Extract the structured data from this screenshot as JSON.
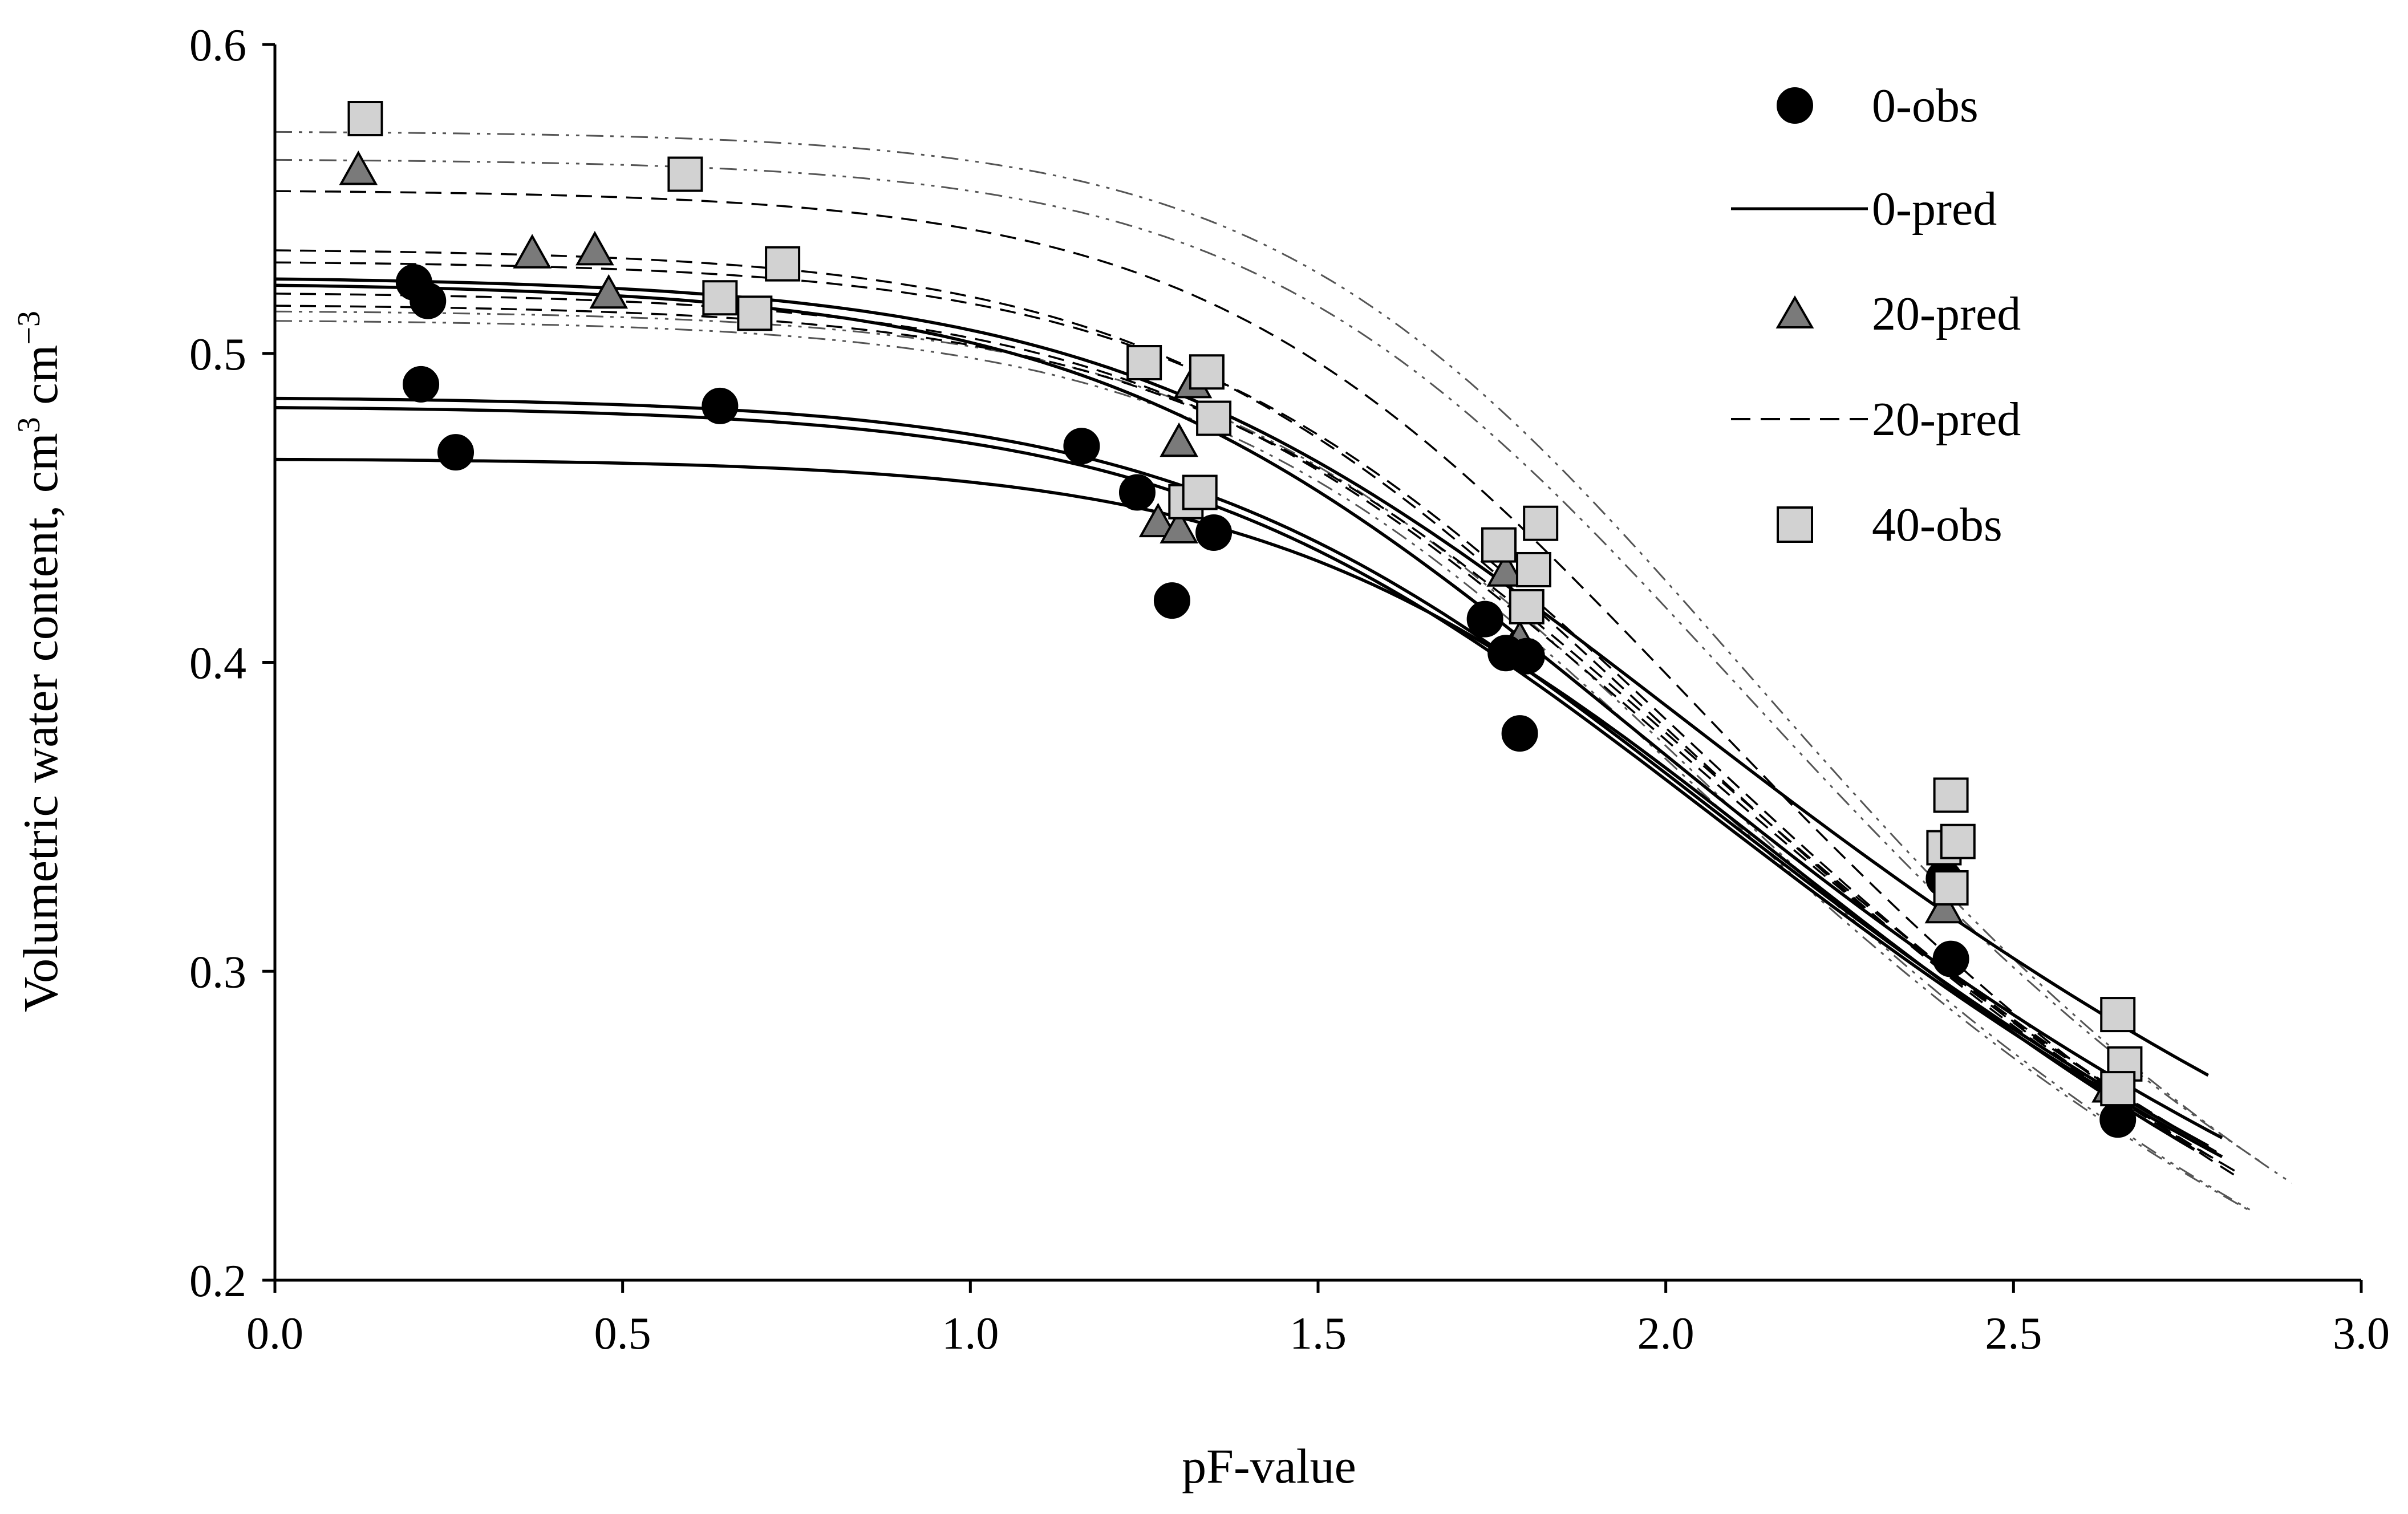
{
  "chart_data": {
    "type": "scatter",
    "title": "",
    "xlabel": "pF-value",
    "ylabel": "Volumetric water content, cm",
    "ylabel_unit_sup_1": "3",
    "ylabel_unit_mid": " cm",
    "ylabel_unit_sup_2": "−3",
    "xlim": [
      0.0,
      3.0
    ],
    "ylim": [
      0.2,
      0.6
    ],
    "x_ticks": [
      "0.0",
      "0.5",
      "1.0",
      "1.5",
      "2.0",
      "2.5",
      "3.0"
    ],
    "y_ticks": [
      "0.2",
      "0.3",
      "0.4",
      "0.5",
      "0.6"
    ],
    "grid": false,
    "legend_position": "top-right",
    "legend": [
      {
        "label": "0-obs",
        "kind": "circle"
      },
      {
        "label": "0-pred",
        "kind": "solid"
      },
      {
        "label": "20-pred",
        "kind": "triangle"
      },
      {
        "label": "20-pred",
        "kind": "dashed"
      },
      {
        "label": "40-obs",
        "kind": "square"
      }
    ],
    "colors": {
      "circle_fill": "#000000",
      "triangle_fill": "#7a7a7a",
      "square_fill": "#d2d2d2",
      "line": "#000000",
      "dashdot": "#555555"
    },
    "curves_0_pred": [
      {
        "theta_s": 0.525,
        "alpha": 0.028,
        "n": 1.33,
        "x_end": 2.78
      },
      {
        "theta_s": 0.523,
        "alpha": 0.03,
        "n": 1.36,
        "x_end": 2.8
      },
      {
        "theta_s": 0.486,
        "alpha": 0.022,
        "n": 1.38,
        "x_end": 2.78
      },
      {
        "theta_s": 0.483,
        "alpha": 0.022,
        "n": 1.38,
        "x_end": 2.8
      },
      {
        "theta_s": 0.466,
        "alpha": 0.016,
        "n": 1.42,
        "x_end": 2.77
      }
    ],
    "curves_20_pred": [
      {
        "theta_s": 0.553,
        "alpha": 0.02,
        "n": 1.47,
        "x_end": 2.82
      },
      {
        "theta_s": 0.534,
        "alpha": 0.024,
        "n": 1.42,
        "x_end": 2.8
      },
      {
        "theta_s": 0.53,
        "alpha": 0.022,
        "n": 1.43,
        "x_end": 2.82
      },
      {
        "theta_s": 0.52,
        "alpha": 0.024,
        "n": 1.4,
        "x_end": 2.78
      },
      {
        "theta_s": 0.516,
        "alpha": 0.022,
        "n": 1.41,
        "x_end": 2.8
      }
    ],
    "curves_40_pred": [
      {
        "theta_s": 0.572,
        "alpha": 0.016,
        "n": 1.5,
        "x_end": 2.9
      },
      {
        "theta_s": 0.563,
        "alpha": 0.017,
        "n": 1.48,
        "x_end": 2.87
      },
      {
        "theta_s": 0.514,
        "alpha": 0.02,
        "n": 1.46,
        "x_end": 2.85
      },
      {
        "theta_s": 0.511,
        "alpha": 0.021,
        "n": 1.45,
        "x_end": 2.84
      }
    ],
    "points_0_obs": [
      {
        "x": 0.2,
        "y": 0.523
      },
      {
        "x": 0.22,
        "y": 0.517
      },
      {
        "x": 0.21,
        "y": 0.49
      },
      {
        "x": 0.26,
        "y": 0.468
      },
      {
        "x": 0.64,
        "y": 0.483
      },
      {
        "x": 1.16,
        "y": 0.47
      },
      {
        "x": 1.24,
        "y": 0.455
      },
      {
        "x": 1.29,
        "y": 0.42
      },
      {
        "x": 1.35,
        "y": 0.442
      },
      {
        "x": 1.74,
        "y": 0.414
      },
      {
        "x": 1.77,
        "y": 0.403
      },
      {
        "x": 1.8,
        "y": 0.402
      },
      {
        "x": 1.79,
        "y": 0.377
      },
      {
        "x": 2.4,
        "y": 0.33
      },
      {
        "x": 2.41,
        "y": 0.304
      },
      {
        "x": 2.65,
        "y": 0.252
      }
    ],
    "points_20_obs": [
      {
        "x": 0.12,
        "y": 0.559
      },
      {
        "x": 0.37,
        "y": 0.532
      },
      {
        "x": 0.46,
        "y": 0.533
      },
      {
        "x": 0.48,
        "y": 0.519
      },
      {
        "x": 1.3,
        "y": 0.471
      },
      {
        "x": 1.32,
        "y": 0.49
      },
      {
        "x": 1.27,
        "y": 0.445
      },
      {
        "x": 1.3,
        "y": 0.443
      },
      {
        "x": 1.77,
        "y": 0.429
      },
      {
        "x": 1.78,
        "y": 0.404
      },
      {
        "x": 1.79,
        "y": 0.407
      },
      {
        "x": 2.4,
        "y": 0.32
      },
      {
        "x": 2.64,
        "y": 0.262
      }
    ],
    "points_40_obs": [
      {
        "x": 0.13,
        "y": 0.576
      },
      {
        "x": 0.59,
        "y": 0.558
      },
      {
        "x": 0.64,
        "y": 0.518
      },
      {
        "x": 0.69,
        "y": 0.513
      },
      {
        "x": 0.73,
        "y": 0.529
      },
      {
        "x": 1.25,
        "y": 0.497
      },
      {
        "x": 1.34,
        "y": 0.494
      },
      {
        "x": 1.35,
        "y": 0.479
      },
      {
        "x": 1.31,
        "y": 0.452
      },
      {
        "x": 1.33,
        "y": 0.455
      },
      {
        "x": 1.76,
        "y": 0.438
      },
      {
        "x": 1.82,
        "y": 0.445
      },
      {
        "x": 1.81,
        "y": 0.43
      },
      {
        "x": 1.8,
        "y": 0.418
      },
      {
        "x": 2.4,
        "y": 0.34
      },
      {
        "x": 2.41,
        "y": 0.357
      },
      {
        "x": 2.42,
        "y": 0.342
      },
      {
        "x": 2.41,
        "y": 0.327
      },
      {
        "x": 2.65,
        "y": 0.286
      },
      {
        "x": 2.66,
        "y": 0.27
      },
      {
        "x": 2.65,
        "y": 0.262
      }
    ]
  }
}
